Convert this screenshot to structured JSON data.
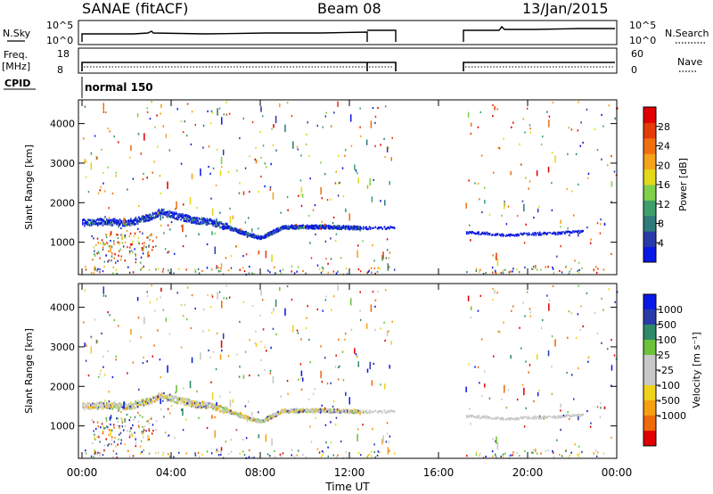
{
  "header": {
    "title": "SANAE (fitACF)",
    "beam": "Beam 08",
    "date": "13/Jan/2015"
  },
  "top_panels": {
    "nsky_label": "N.Sky",
    "nsky_ticks": [
      "10^5",
      "10^0"
    ],
    "nsearch_label": "N.Search",
    "nsearch_ticks": [
      "10^5",
      "10^0"
    ],
    "freq_label": "Freq.",
    "freq_unit": "[MHz]",
    "freq_ticks": [
      "18",
      "8"
    ],
    "nave_label": "Nave",
    "nave_ticks": [
      "60",
      "0"
    ],
    "cpid_label": "CPID",
    "cpid_value": "normal 150"
  },
  "colors": {
    "power_scale": [
      "#0a18e6",
      "#2a3aa8",
      "#2f7a7a",
      "#3f9f6a",
      "#7fd04a",
      "#e3d81a",
      "#f4a31a",
      "#f07010",
      "#e53a0a",
      "#e00000"
    ],
    "velocity_scale": [
      "#0a18e6",
      "#2a3aa8",
      "#2f8a6a",
      "#6cc23a",
      "#c8c8c8",
      "#c8c8c8",
      "#f0d21a",
      "#f4a010",
      "#ee6a0a",
      "#e00000"
    ],
    "trace": "#000000"
  },
  "chart_data": [
    {
      "type": "heatmap",
      "name": "power",
      "xlabel": "",
      "ylabel": "Slant Range [km]",
      "xlim": [
        0,
        24
      ],
      "ylim": [
        180,
        4600
      ],
      "x_ticklabels": [],
      "y_ticks": [
        1000,
        2000,
        3000,
        4000
      ],
      "y_ticklabels": [
        "1000",
        "2000",
        "3000",
        "4000"
      ],
      "colorbar": {
        "label": "Power [dB]",
        "range": [
          0,
          32
        ],
        "ticks": [
          4,
          8,
          12,
          16,
          20,
          24,
          28
        ],
        "ticklabels": [
          "4",
          "8",
          "12",
          "16",
          "20",
          "24",
          "28"
        ]
      },
      "echo_band": {
        "description_hours": [
          0.0,
          1.0,
          2.0,
          3.0,
          3.5,
          4.0,
          5.0,
          6.0,
          7.0,
          8.0,
          9.0,
          10.0,
          11.0,
          12.0,
          13.0,
          14.0,
          17.7,
          18.0,
          19.0,
          20.0,
          21.0,
          22.0,
          22.5
        ],
        "range_km": [
          1520,
          1540,
          1510,
          1650,
          1790,
          1720,
          1580,
          1500,
          1300,
          1130,
          1400,
          1410,
          1410,
          1390,
          1380,
          1390,
          1250,
          1250,
          1200,
          1230,
          1240,
          1280,
          1300
        ]
      }
    },
    {
      "type": "heatmap",
      "name": "velocity",
      "xlabel": "Time UT",
      "ylabel": "Slant Range [km]",
      "xlim": [
        0,
        24
      ],
      "ylim": [
        180,
        4600
      ],
      "x_ticks": [
        0,
        4,
        8,
        12,
        16,
        20,
        24
      ],
      "x_ticklabels": [
        "00:00",
        "04:00",
        "08:00",
        "12:00",
        "16:00",
        "20:00",
        "00:00"
      ],
      "y_ticks": [
        1000,
        2000,
        3000,
        4000
      ],
      "y_ticklabels": [
        "1000",
        "2000",
        "3000",
        "4000"
      ],
      "colorbar": {
        "label": "Velocity [m s⁻¹]",
        "ticklabels": [
          "1000",
          "500",
          "100",
          "25",
          "-25",
          "-100",
          "-500",
          "-1000"
        ]
      }
    }
  ]
}
